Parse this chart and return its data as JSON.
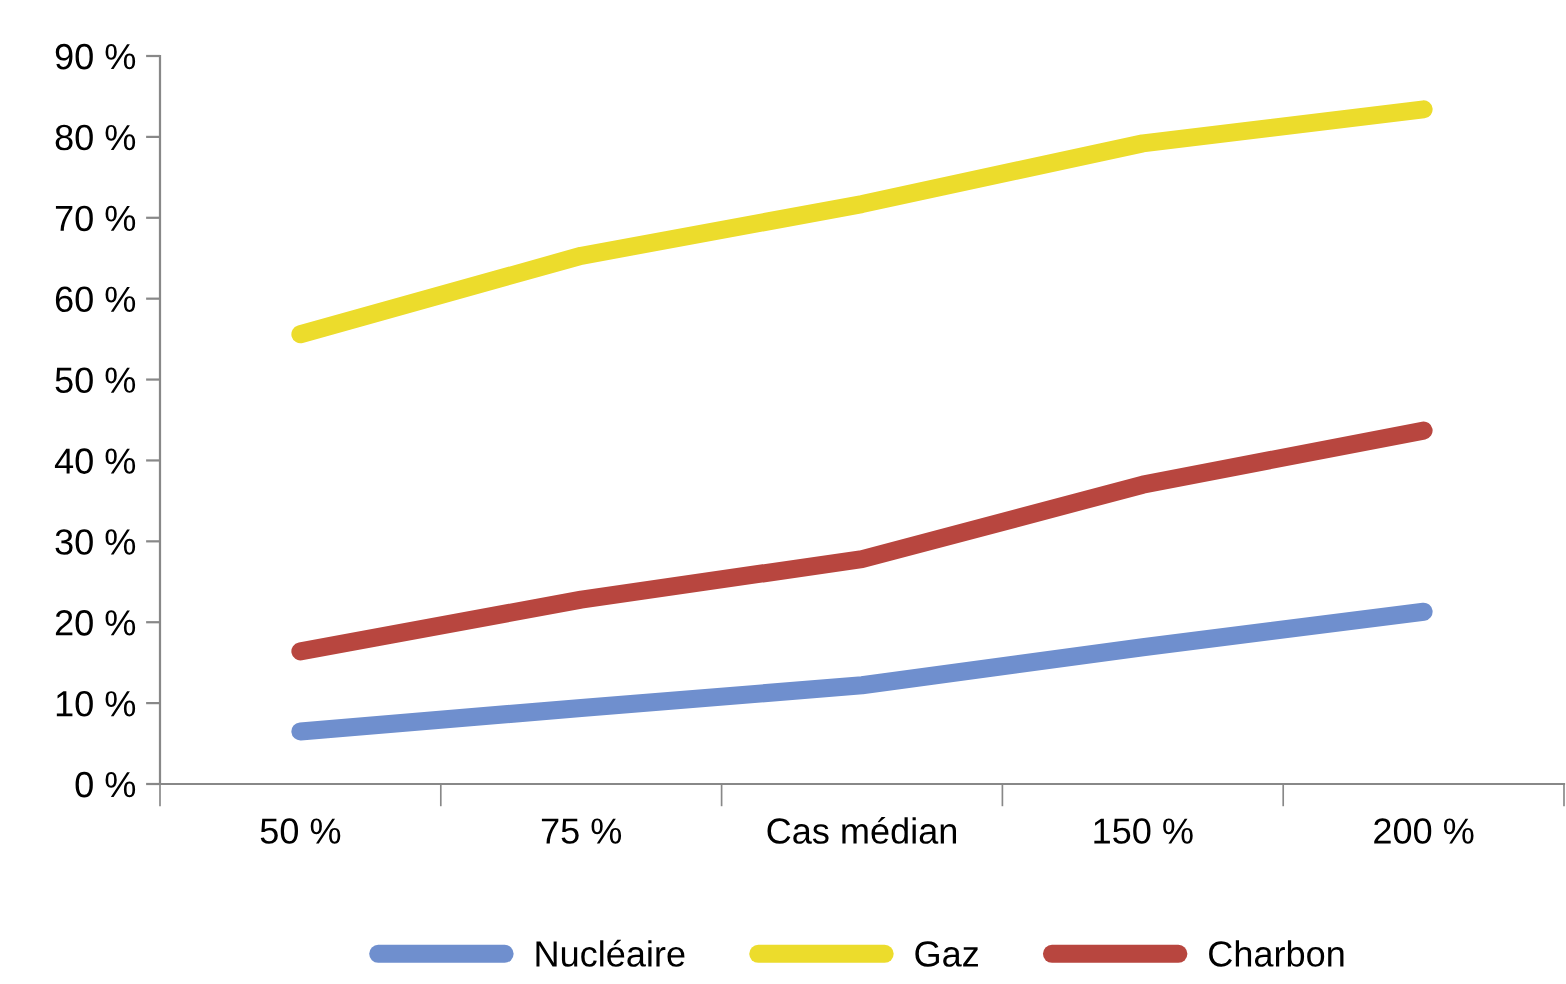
{
  "chart_data": {
    "type": "line",
    "categories": [
      "50 %",
      "75 %",
      "Cas médian",
      "150 %",
      "200 %"
    ],
    "series": [
      {
        "name": "Nucléaire",
        "color": "#6f8fce",
        "values": [
          6.5,
          9.4,
          12.2,
          16.9,
          21.3
        ]
      },
      {
        "name": "Gaz",
        "color": "#ecdc2c",
        "values": [
          55.6,
          65.3,
          71.7,
          79.2,
          83.4
        ]
      },
      {
        "name": "Charbon",
        "color": "#b8463f",
        "values": [
          16.4,
          22.8,
          27.8,
          37.0,
          43.7
        ]
      }
    ],
    "ylim": [
      0,
      90
    ],
    "yticks": [
      {
        "value": 0,
        "label": "0 %"
      },
      {
        "value": 10,
        "label": "10 %"
      },
      {
        "value": 20,
        "label": "20 %"
      },
      {
        "value": 30,
        "label": "30 %"
      },
      {
        "value": 40,
        "label": "40 %"
      },
      {
        "value": 50,
        "label": "50 %"
      },
      {
        "value": 60,
        "label": "60 %"
      },
      {
        "value": 70,
        "label": "70 %"
      },
      {
        "value": 80,
        "label": "80 %"
      },
      {
        "value": 90,
        "label": "90 %"
      }
    ],
    "legend": "bottom",
    "marker": "none",
    "line_style": "solid",
    "grid": false
  }
}
